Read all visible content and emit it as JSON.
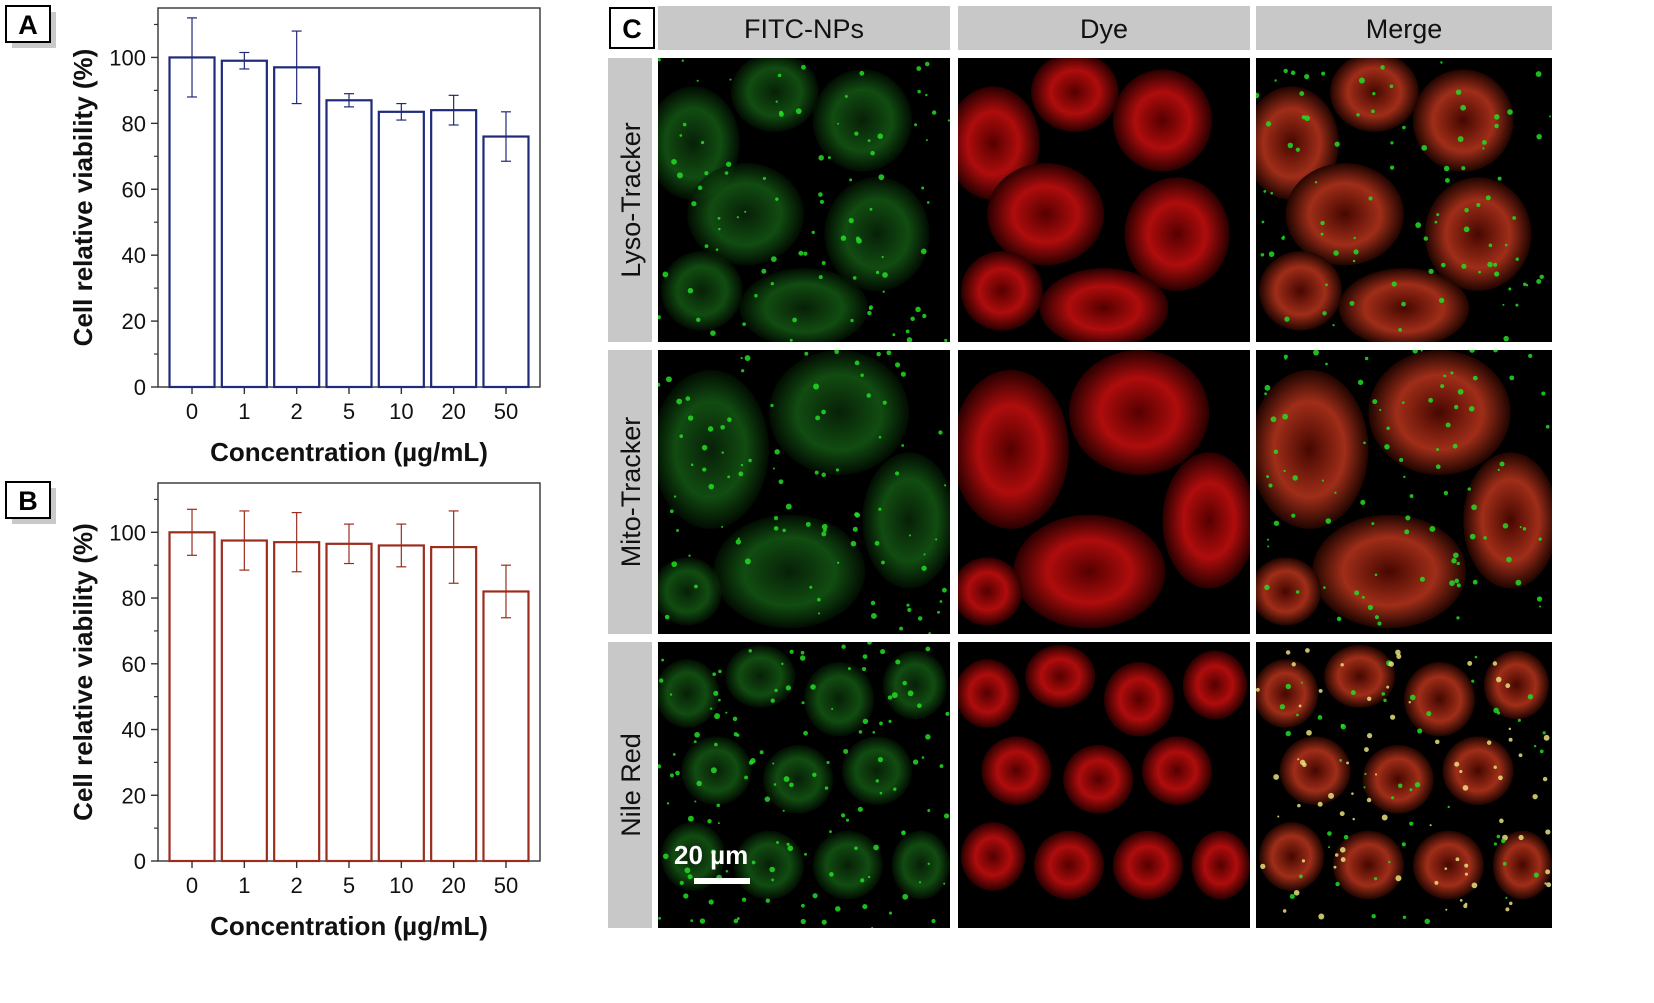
{
  "panel_letters": {
    "a": "A",
    "b": "B",
    "c": "C"
  },
  "chart_data": [
    {
      "type": "bar",
      "panel": "A",
      "categories": [
        "0",
        "1",
        "2",
        "5",
        "10",
        "20",
        "50"
      ],
      "values": [
        100,
        99,
        97,
        87,
        83.5,
        84,
        76
      ],
      "errors": [
        12,
        2.5,
        11,
        2,
        2.5,
        4.5,
        7.5
      ],
      "xlabel": "Concentration (µg/mL)",
      "ylabel": "Cell relative viability (%)",
      "ylim": [
        0,
        115
      ],
      "yticks": [
        0,
        20,
        40,
        60,
        80,
        100
      ],
      "color": "#1f2a7a"
    },
    {
      "type": "bar",
      "panel": "B",
      "categories": [
        "0",
        "1",
        "2",
        "5",
        "10",
        "20",
        "50"
      ],
      "values": [
        100,
        97.5,
        97,
        96.5,
        96,
        95.5,
        82
      ],
      "errors": [
        7,
        9,
        9,
        6,
        6.5,
        11,
        8
      ],
      "xlabel": "Concentration (µg/mL)",
      "ylabel": "Cell relative viability (%)",
      "ylim": [
        0,
        115
      ],
      "yticks": [
        0,
        20,
        40,
        60,
        80,
        100
      ],
      "color": "#9b2d1f"
    }
  ],
  "micrograph": {
    "columns": [
      "FITC-NPs",
      "Dye",
      "Merge"
    ],
    "rows": [
      "Lyso-Tracker",
      "Mito-Tracker",
      "Nile Red"
    ],
    "scale_bar": "20 µm",
    "colors": {
      "fitc": "#22dd22",
      "dye": "#ee1111",
      "header_bg": "#c8c8c8",
      "image_bg": "#000000"
    }
  }
}
